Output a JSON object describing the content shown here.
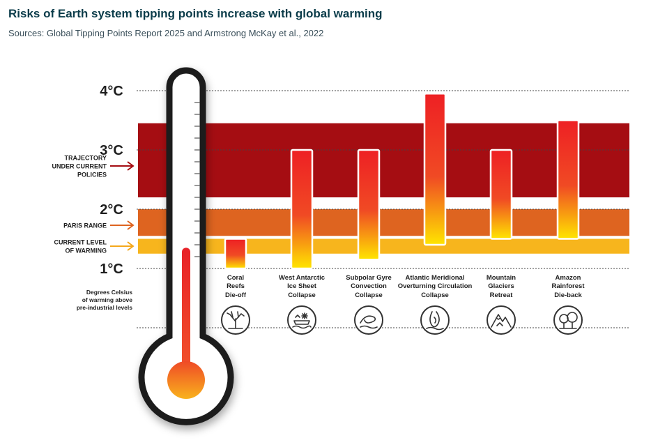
{
  "title": "Risks of Earth system tipping points increase with global warming",
  "subtitle": "Sources: Global Tipping Points Report 2025 and Armstrong McKay et al., 2022",
  "chart_data": {
    "type": "bar",
    "subtype": "floating-range",
    "ylim": [
      0,
      4.1
    ],
    "yticks": [
      "4°C",
      "3°C",
      "2°C",
      "1°C"
    ],
    "ytick_values": [
      4,
      3,
      2,
      1
    ],
    "ylabel": "Degrees Celsius of warming above pre-industrial levels",
    "current_warming": 1.35,
    "bands": [
      {
        "label": "TRAJECTORY UNDER CURRENT POLICIES",
        "from": 2.2,
        "to": 3.45,
        "color": "#a50d12"
      },
      {
        "label": "PARIS RANGE",
        "from": 1.55,
        "to": 2.0,
        "color": "#de6420"
      },
      {
        "label": "CURRENT LEVEL OF WARMING",
        "from": 1.25,
        "to": 1.5,
        "color": "#f7b51d"
      }
    ],
    "categories": [
      {
        "name_lines": [
          "Coral",
          "Reefs"
        ],
        "impact": "Die-off",
        "low": 1.0,
        "high": 1.5,
        "icon": "coral-icon"
      },
      {
        "name_lines": [
          "West Antarctic",
          "Ice Sheet"
        ],
        "impact": "Collapse",
        "low": 1.0,
        "high": 3.0,
        "icon": "ice-sheet-icon"
      },
      {
        "name_lines": [
          "Subpolar Gyre",
          "Convection"
        ],
        "impact": "Collapse",
        "low": 1.15,
        "high": 3.0,
        "icon": "gyre-icon"
      },
      {
        "name_lines": [
          "Atlantic Meridional",
          "Overturning Circulation"
        ],
        "impact": "Collapse",
        "low": 1.4,
        "high": 3.95,
        "icon": "ocean-circulation-icon"
      },
      {
        "name_lines": [
          "Mountain",
          "Glaciers"
        ],
        "impact": "Retreat",
        "low": 1.5,
        "high": 3.0,
        "icon": "mountain-icon"
      },
      {
        "name_lines": [
          "Amazon",
          "Rainforest"
        ],
        "impact": "Die-back",
        "low": 1.5,
        "high": 3.5,
        "icon": "forest-icon"
      }
    ],
    "colors": {
      "bar_top": "#ee2024",
      "bar_bottom": "#ffe500",
      "impact_text": "#e8212b",
      "tick_text": "#3d3d3d"
    }
  }
}
